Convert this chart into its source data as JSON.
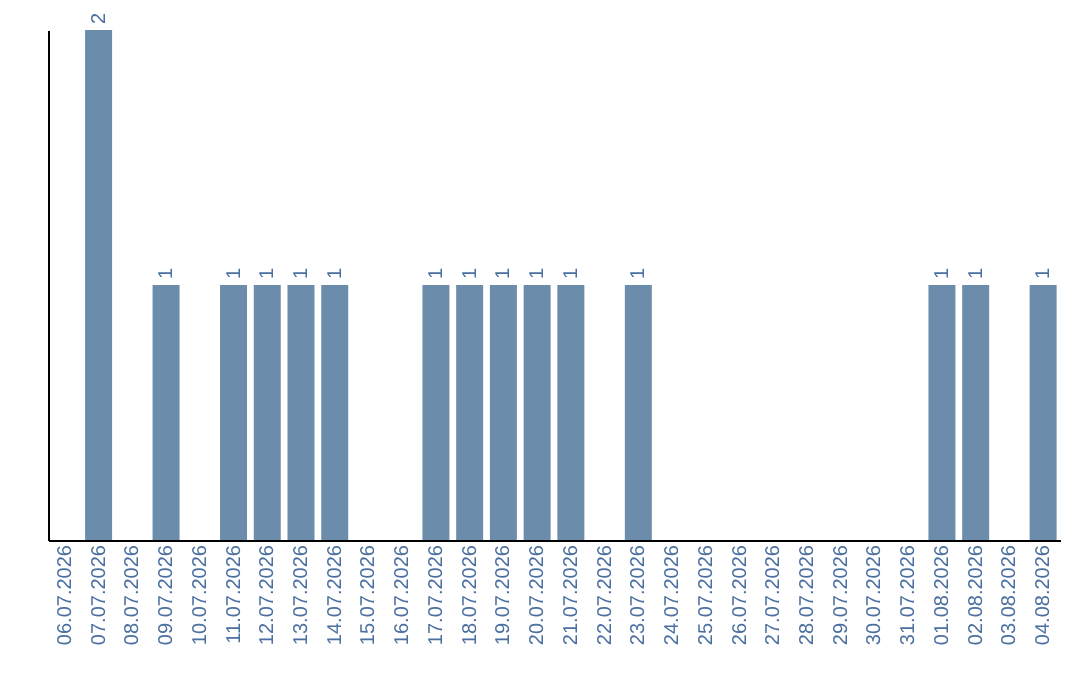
{
  "chart_data": {
    "type": "bar",
    "categories": [
      "06.07.2026",
      "07.07.2026",
      "08.07.2026",
      "09.07.2026",
      "10.07.2026",
      "11.07.2026",
      "12.07.2026",
      "13.07.2026",
      "14.07.2026",
      "15.07.2026",
      "16.07.2026",
      "17.07.2026",
      "18.07.2026",
      "19.07.2026",
      "20.07.2026",
      "21.07.2026",
      "22.07.2026",
      "23.07.2026",
      "24.07.2026",
      "25.07.2026",
      "26.07.2026",
      "27.07.2026",
      "28.07.2026",
      "29.07.2026",
      "30.07.2026",
      "31.07.2026",
      "01.08.2026",
      "02.08.2026",
      "03.08.2026",
      "04.08.2026"
    ],
    "values": [
      0,
      2,
      0,
      1,
      0,
      1,
      1,
      1,
      1,
      0,
      0,
      1,
      1,
      1,
      1,
      1,
      0,
      1,
      0,
      0,
      0,
      0,
      0,
      0,
      0,
      0,
      1,
      1,
      0,
      1
    ],
    "value_labels": [
      null,
      "2",
      null,
      "1",
      null,
      "1",
      "1",
      "1",
      "1",
      null,
      null,
      "1",
      "1",
      "1",
      "1",
      "1",
      null,
      "1",
      null,
      null,
      null,
      null,
      null,
      null,
      null,
      null,
      "1",
      "1",
      null,
      "1"
    ],
    "color": "#6b8cab",
    "tick_labels": "x",
    "grid": false
  }
}
